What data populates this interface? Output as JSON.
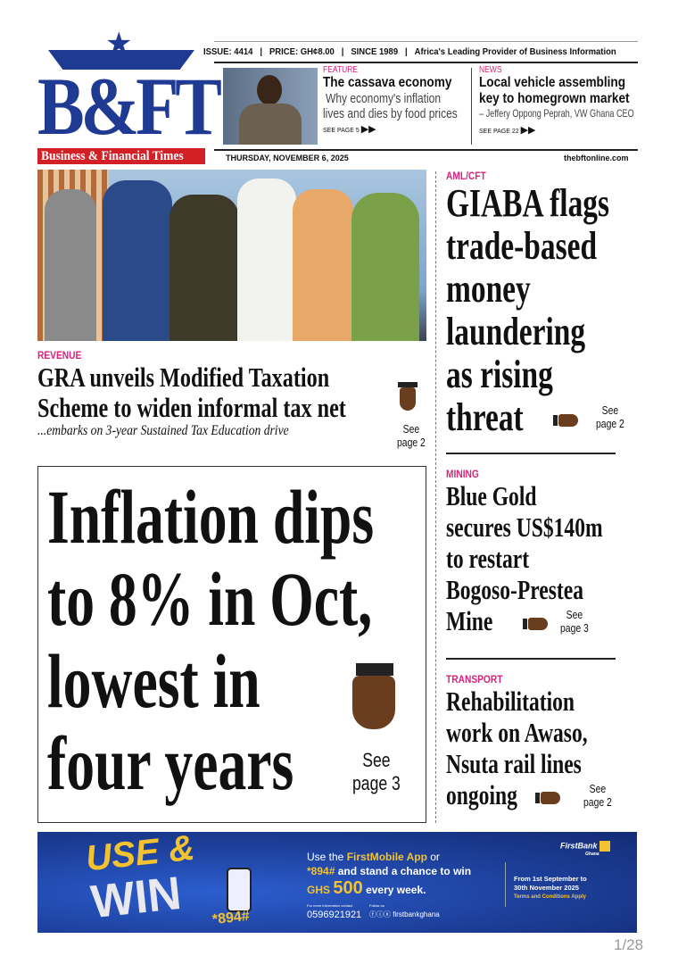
{
  "masthead": {
    "logo": "B&FT",
    "logo_sub": "Business & Financial Times",
    "issue": "ISSUE: 4414",
    "price": "PRICE: GH¢8.00",
    "since": "SINCE 1989",
    "tagline": "Africa's Leading Provider of Business Information",
    "date": "THURSDAY, NOVEMBER 6, 2025",
    "website": "thebftonline.com"
  },
  "teasers": [
    {
      "kicker": "FEATURE",
      "title": "The cassava economy",
      "sub1": "Why economy's inflation",
      "sub2": "lives and dies by food prices",
      "see": "SEE PAGE 5"
    },
    {
      "kicker": "NEWS",
      "title1": "Local vehicle assembling",
      "title2": "key to homegrown market",
      "sub": "– Jeffery Oppong Peprah, VW Ghana CEO",
      "see": "SEE PAGE 22"
    }
  ],
  "revenue": {
    "kicker": "REVENUE",
    "line1": "GRA unveils Modified Taxation",
    "line2": "Scheme to widen informal tax net",
    "deck": "...embarks on 3-year Sustained Tax Education drive",
    "see1": "See",
    "see2": "page 2"
  },
  "lead": {
    "lines": [
      "Inflation dips",
      "to 8% in Oct,",
      "lowest in",
      "four years"
    ],
    "see1": "See",
    "see2": "page 3"
  },
  "right": [
    {
      "kicker": "AML/CFT",
      "lines": [
        "GIABA flags",
        "trade-based",
        "money",
        "laundering",
        "as rising",
        "threat"
      ],
      "see1": "See",
      "see2": "page 2"
    },
    {
      "kicker": "MINING",
      "lines": [
        "Blue Gold",
        "secures US$140m",
        "to restart",
        "Bogoso-Prestea",
        "Mine"
      ],
      "see1": "See",
      "see2": "page 3"
    },
    {
      "kicker": "TRANSPORT",
      "lines": [
        "Rehabilitation",
        "work on Awaso,",
        "Nsuta rail lines",
        "ongoing"
      ],
      "see1": "See",
      "see2": "page 2"
    }
  ],
  "ad": {
    "big1": "USE &",
    "big2": "WIN",
    "code": "*894#",
    "l1a": "Use the ",
    "l1b": "FirstMobile App",
    "l1c": " or",
    "l2a": "*894#",
    "l2b": " and stand a chance to win",
    "ghs": "GHS",
    "amount": "500",
    "week": "every week.",
    "contact_label": "For more information contact",
    "phone": "0596921921",
    "follow_label": "Follow us",
    "social": "firstbankghana",
    "dates1": "From 1st September to",
    "dates2": "30th November 2025",
    "terms": "Terms and Conditions Apply",
    "brand": "FirstBank",
    "brand_sub": "Ghana"
  },
  "pager": "1/28",
  "colors": {
    "accent": "#d6247a",
    "logo_blue": "#1f3a93",
    "logo_red": "#d32027",
    "ad_blue": "#1d3f9a",
    "gold": "#f2c230"
  }
}
